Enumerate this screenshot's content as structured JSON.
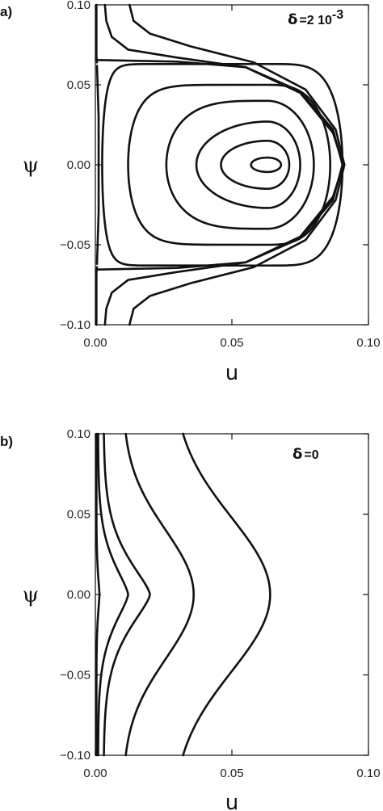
{
  "chart_data": [
    {
      "panel_label": "a)",
      "type": "line",
      "subtype": "phase-portrait contour lines",
      "annotation": {
        "symbol": "δ",
        "text": "=2 10",
        "superscript": "-3"
      },
      "xlabel": "u",
      "ylabel": "ψ",
      "xlim": [
        0.0,
        0.1
      ],
      "ylim": [
        -0.1,
        0.1
      ],
      "xticks": [
        "0.00",
        "0.05",
        "0.10"
      ],
      "yticks": [
        "0.10",
        "0.05",
        "0.00",
        "−0.05",
        "−0.10"
      ],
      "xtick_values": [
        0.0,
        0.05,
        0.1
      ],
      "ytick_values": [
        0.1,
        0.05,
        0.0,
        -0.05,
        -0.1
      ],
      "grid": false,
      "separatrix": {
        "psi_level": 0.065,
        "u_tip": 0.091
      },
      "closed_orbits": [
        {
          "u_min": 0.0025,
          "u_max": 0.0905,
          "psi_half": 0.063,
          "center": [
            0.063,
            0.0
          ]
        },
        {
          "u_min": 0.012,
          "u_max": 0.086,
          "psi_half": 0.05,
          "center": [
            0.063,
            0.0
          ]
        },
        {
          "u_min": 0.026,
          "u_max": 0.08,
          "psi_half": 0.04,
          "center": [
            0.063,
            0.0
          ]
        },
        {
          "u_min": 0.037,
          "u_max": 0.075,
          "psi_half": 0.027,
          "center": [
            0.063,
            0.0
          ]
        },
        {
          "u_min": 0.046,
          "u_max": 0.071,
          "psi_half": 0.015,
          "center": [
            0.063,
            0.0
          ]
        },
        {
          "u_min": 0.057,
          "u_max": 0.068,
          "psi_half": 0.0045,
          "center": [
            0.063,
            0.0
          ]
        }
      ],
      "open_curves_top": [
        {
          "u_at_top": 0.004,
          "u_at_sep": 0.09
        },
        {
          "u_at_top": 0.013,
          "u_at_sep": 0.0905
        }
      ],
      "open_curves_bottom": [
        {
          "u_at_bottom": 0.004,
          "u_at_sep": 0.09
        },
        {
          "u_at_bottom": 0.013,
          "u_at_sep": 0.0905
        }
      ]
    },
    {
      "panel_label": "b)",
      "type": "line",
      "subtype": "phase-portrait contour lines",
      "annotation": {
        "symbol": "δ",
        "text": "=0",
        "superscript": ""
      },
      "xlabel": "u",
      "ylabel": "ψ",
      "xlim": [
        0.0,
        0.1
      ],
      "ylim": [
        -0.1,
        0.1
      ],
      "xticks": [
        "0.00",
        "0.05",
        "0.10"
      ],
      "yticks": [
        "0.10",
        "0.05",
        "0.00",
        "−0.05",
        "−0.10"
      ],
      "xtick_values": [
        0.0,
        0.05,
        0.1
      ],
      "ytick_values": [
        0.1,
        0.05,
        0.0,
        -0.05,
        -0.1
      ],
      "grid": false,
      "curves": [
        {
          "u_at_psi0": 0.0015,
          "u_at_ends": 0.0004
        },
        {
          "u_at_psi0": 0.012,
          "u_at_ends": 0.001
        },
        {
          "u_at_psi0": 0.02,
          "u_at_ends": 0.003
        },
        {
          "u_at_psi0": 0.036,
          "u_at_ends": 0.01
        },
        {
          "u_at_psi0": 0.064,
          "u_at_ends": 0.028
        }
      ]
    }
  ]
}
